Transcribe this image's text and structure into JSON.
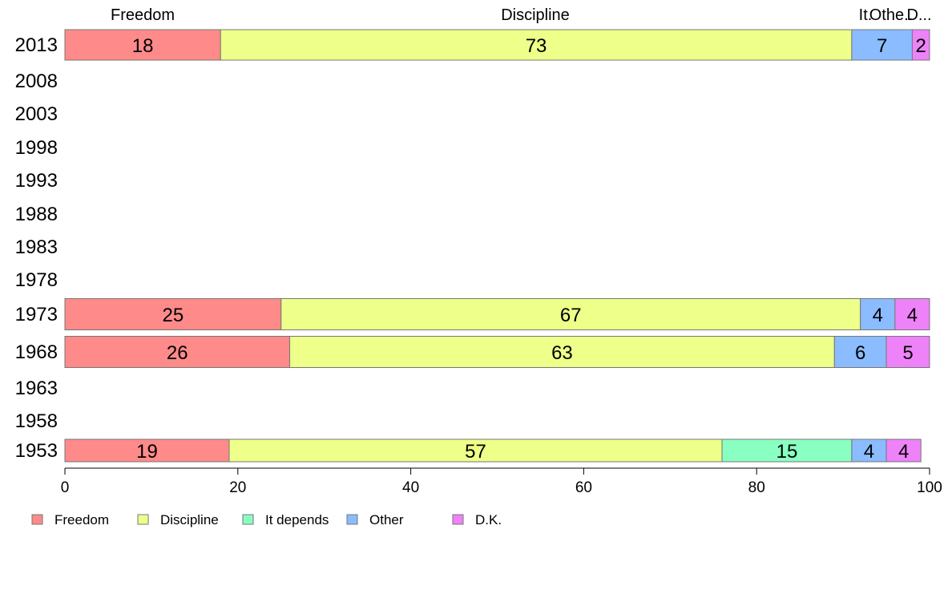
{
  "chart_data": {
    "type": "bar",
    "orientation": "horizontal",
    "stacked": true,
    "categories": [
      "2013",
      "2008",
      "2003",
      "1998",
      "1993",
      "1988",
      "1983",
      "1978",
      "1973",
      "1968",
      "1963",
      "1958",
      "1953"
    ],
    "series": [
      {
        "name": "Freedom",
        "color": "#ff8a8a",
        "values": [
          18,
          null,
          null,
          null,
          null,
          null,
          null,
          null,
          25,
          26,
          null,
          null,
          19
        ]
      },
      {
        "name": "Discipline",
        "color": "#eeff8a",
        "values": [
          73,
          null,
          null,
          null,
          null,
          null,
          null,
          null,
          67,
          63,
          null,
          null,
          57
        ]
      },
      {
        "name": "It depends",
        "color": "#8affc2",
        "values": [
          0,
          null,
          null,
          null,
          null,
          null,
          null,
          null,
          0,
          0,
          null,
          null,
          15
        ]
      },
      {
        "name": "Other",
        "color": "#8abcff",
        "values": [
          7,
          null,
          null,
          null,
          null,
          null,
          null,
          null,
          4,
          6,
          null,
          null,
          4
        ]
      },
      {
        "name": "D.K.",
        "color": "#ee82f8",
        "values": [
          2,
          null,
          null,
          null,
          null,
          null,
          null,
          null,
          4,
          5,
          null,
          null,
          4
        ]
      }
    ],
    "top_labels": [
      "Freedom",
      "Discipline",
      "It.",
      "Othe..",
      "D..."
    ],
    "xlim": [
      0,
      100
    ],
    "xticks": [
      0,
      20,
      40,
      60,
      80,
      100
    ],
    "grid": false,
    "legend_position": "bottom-left"
  }
}
